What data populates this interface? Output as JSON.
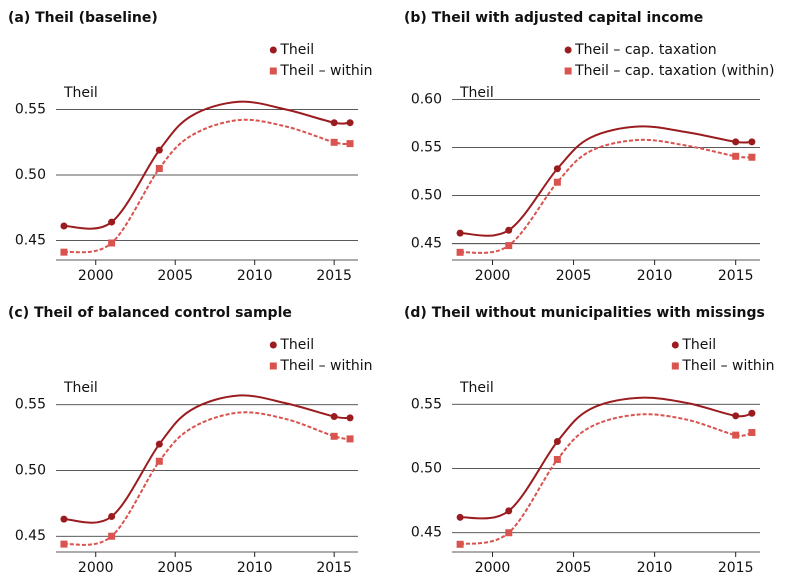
{
  "chart_data": [
    {
      "type": "line",
      "title": "(a) Theil (baseline)",
      "ylabel": "Theil",
      "legend": "upper right",
      "grid": true,
      "x": [
        1998,
        2001,
        2004,
        2006,
        2009,
        2012,
        2015,
        2016
      ],
      "markers": [
        true,
        true,
        true,
        false,
        false,
        false,
        true,
        true
      ],
      "xlim": [
        1997.5,
        2016.5
      ],
      "xticks": [
        2000,
        2005,
        2010,
        2015
      ],
      "ylim": [
        0.435,
        0.565
      ],
      "yticks": [
        0.45,
        {
          "value": 0.5,
          "label": "0.50"
        },
        0.55
      ],
      "series": [
        {
          "name": "Theil",
          "color": "#9b1c1f",
          "marker": "circle",
          "dashed": false,
          "values": [
            0.461,
            0.464,
            0.519,
            0.545,
            0.556,
            0.55,
            0.54,
            0.54
          ]
        },
        {
          "name": "Theil – within",
          "color": "#d9534f",
          "marker": "square",
          "dashed": true,
          "values": [
            0.441,
            0.448,
            0.505,
            0.53,
            0.542,
            0.537,
            0.525,
            0.524
          ]
        }
      ]
    },
    {
      "type": "line",
      "title": "(b) Theil with adjusted capital income",
      "ylabel": "Theil",
      "legend": "upper right",
      "grid": true,
      "x": [
        1998,
        2001,
        2004,
        2006,
        2009,
        2012,
        2015,
        2016
      ],
      "markers": [
        true,
        true,
        true,
        false,
        false,
        false,
        true,
        true
      ],
      "xlim": [
        1997.5,
        2016.5
      ],
      "xticks": [
        2000,
        2005,
        2010,
        2015
      ],
      "ylim": [
        0.433,
        0.61
      ],
      "yticks": [
        0.45,
        {
          "value": 0.5,
          "label": "0.50"
        },
        0.55,
        {
          "value": 0.6,
          "label": "0.60"
        }
      ],
      "series": [
        {
          "name": "Theil – cap. taxation",
          "color": "#9b1c1f",
          "marker": "circle",
          "dashed": false,
          "values": [
            0.461,
            0.464,
            0.528,
            0.56,
            0.572,
            0.566,
            0.556,
            0.556
          ]
        },
        {
          "name": "Theil – cap. taxation (within)",
          "color": "#d9534f",
          "marker": "square",
          "dashed": true,
          "values": [
            0.441,
            0.448,
            0.514,
            0.546,
            0.558,
            0.552,
            0.541,
            0.54
          ]
        }
      ]
    },
    {
      "type": "line",
      "title": "(c) Theil of balanced control sample",
      "ylabel": "Theil",
      "legend": "upper right",
      "grid": true,
      "x": [
        1998,
        2001,
        2004,
        2006,
        2009,
        2012,
        2015,
        2016
      ],
      "markers": [
        true,
        true,
        true,
        false,
        false,
        false,
        true,
        true
      ],
      "xlim": [
        1997.5,
        2016.5
      ],
      "xticks": [
        2000,
        2005,
        2010,
        2015
      ],
      "ylim": [
        0.438,
        0.565
      ],
      "yticks": [
        0.45,
        {
          "value": 0.5,
          "label": "0.50"
        },
        0.55
      ],
      "series": [
        {
          "name": "Theil",
          "color": "#9b1c1f",
          "marker": "circle",
          "dashed": false,
          "values": [
            0.463,
            0.465,
            0.52,
            0.546,
            0.557,
            0.551,
            0.541,
            0.54
          ]
        },
        {
          "name": "Theil – within",
          "color": "#d9534f",
          "marker": "square",
          "dashed": true,
          "values": [
            0.444,
            0.45,
            0.507,
            0.532,
            0.544,
            0.539,
            0.526,
            0.524
          ]
        }
      ]
    },
    {
      "type": "line",
      "title": "(d) Theil without municipalities with missings",
      "ylabel": "Theil",
      "legend": "upper right",
      "grid": true,
      "x": [
        1998,
        2001,
        2004,
        2006,
        2009,
        2012,
        2015,
        2016
      ],
      "markers": [
        true,
        true,
        true,
        false,
        false,
        false,
        true,
        true
      ],
      "xlim": [
        1997.5,
        2016.5
      ],
      "xticks": [
        2000,
        2005,
        2010,
        2015
      ],
      "ylim": [
        0.435,
        0.565
      ],
      "yticks": [
        0.45,
        {
          "value": 0.5,
          "label": "0.50"
        },
        0.55
      ],
      "series": [
        {
          "name": "Theil",
          "color": "#9b1c1f",
          "marker": "circle",
          "dashed": false,
          "values": [
            0.462,
            0.467,
            0.521,
            0.546,
            0.555,
            0.551,
            0.541,
            0.543
          ]
        },
        {
          "name": "Theil – within",
          "color": "#d9534f",
          "marker": "square",
          "dashed": true,
          "values": [
            0.441,
            0.45,
            0.507,
            0.532,
            0.542,
            0.538,
            0.526,
            0.528
          ]
        }
      ]
    }
  ]
}
